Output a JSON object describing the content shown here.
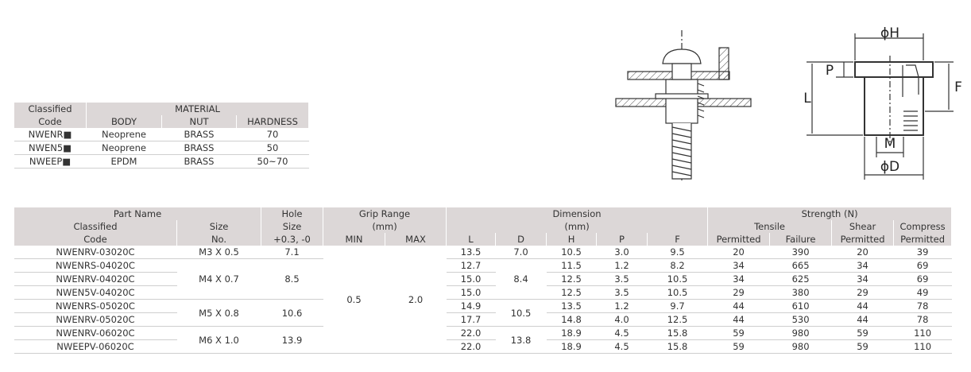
{
  "material_table": {
    "header": {
      "classified": "Classified",
      "code": "Code",
      "material": "MATERIAL",
      "columns": [
        "BODY",
        "NUT",
        "HARDNESS"
      ]
    },
    "rows": [
      [
        "NWENR■",
        "Neoprene",
        "BRASS",
        "70"
      ],
      [
        "NWEN5■",
        "Neoprene",
        "BRASS",
        "50"
      ],
      [
        "NWEEP■",
        "EPDM",
        "BRASS",
        "50~70"
      ]
    ]
  },
  "diagram": {
    "labels": {
      "h": "ϕH",
      "p": "P",
      "f": "F",
      "l": "L",
      "m": "M",
      "d": "ϕD"
    }
  },
  "spec_table": {
    "header": {
      "part_name": "Part Name",
      "classified": "Classified",
      "code": "Code",
      "size_1": "Size",
      "size_2": "No.",
      "hole_1": "Hole",
      "hole_2": "Size",
      "hole_3": "+0.3, -0",
      "grip_range": "Grip Range",
      "grip_unit": "(mm)",
      "min": "MIN",
      "max": "MAX",
      "dimension": "Dimension",
      "dimension_unit": "(mm)",
      "dim_columns": [
        "L",
        "D",
        "H",
        "P",
        "F"
      ],
      "strength": "Strength (N)",
      "tensile": "Tensile",
      "shear": "Shear",
      "compress": "Compress",
      "strength_columns": [
        "Permitted",
        "Failure",
        "Permitted",
        "Permitted"
      ]
    },
    "grip_min": "0.5",
    "grip_max": "2.0",
    "groups": [
      {
        "size": "M3 X 0.5",
        "hole": "7.1",
        "d": "7.0",
        "rows": [
          {
            "code": "NWENRV-03020C",
            "l": "13.5",
            "h": "10.5",
            "p": "3.0",
            "f": "9.5",
            "tensile_permitted": "20",
            "tensile_failure": "390",
            "shear_permitted": "20",
            "compress_permitted": "39"
          }
        ]
      },
      {
        "size": "M4 X 0.7",
        "hole": "8.5",
        "d": "8.4",
        "rows": [
          {
            "code": "NWENRS-04020C",
            "l": "12.7",
            "h": "11.5",
            "p": "1.2",
            "f": "8.2",
            "tensile_permitted": "34",
            "tensile_failure": "665",
            "shear_permitted": "34",
            "compress_permitted": "69"
          },
          {
            "code": "NWENRV-04020C",
            "l": "15.0",
            "h": "12.5",
            "p": "3.5",
            "f": "10.5",
            "tensile_permitted": "34",
            "tensile_failure": "625",
            "shear_permitted": "34",
            "compress_permitted": "69"
          },
          {
            "code": "NWEN5V-04020C",
            "l": "15.0",
            "h": "12.5",
            "p": "3.5",
            "f": "10.5",
            "tensile_permitted": "29",
            "tensile_failure": "380",
            "shear_permitted": "29",
            "compress_permitted": "49"
          }
        ]
      },
      {
        "size": "M5 X 0.8",
        "hole": "10.6",
        "d": "10.5",
        "rows": [
          {
            "code": "NWENRS-05020C",
            "l": "14.9",
            "h": "13.5",
            "p": "1.2",
            "f": "9.7",
            "tensile_permitted": "44",
            "tensile_failure": "610",
            "shear_permitted": "44",
            "compress_permitted": "78"
          },
          {
            "code": "NWENRV-05020C",
            "l": "17.7",
            "h": "14.8",
            "p": "4.0",
            "f": "12.5",
            "tensile_permitted": "44",
            "tensile_failure": "530",
            "shear_permitted": "44",
            "compress_permitted": "78"
          }
        ]
      },
      {
        "size": "M6 X 1.0",
        "hole": "13.9",
        "d": "13.8",
        "rows": [
          {
            "code": "NWENRV-06020C",
            "l": "22.0",
            "h": "18.9",
            "p": "4.5",
            "f": "15.8",
            "tensile_permitted": "59",
            "tensile_failure": "980",
            "shear_permitted": "59",
            "compress_permitted": "110"
          },
          {
            "code": "NWEEPV-06020C",
            "l": "22.0",
            "h": "18.9",
            "p": "4.5",
            "f": "15.8",
            "tensile_permitted": "59",
            "tensile_failure": "980",
            "shear_permitted": "59",
            "compress_permitted": "110"
          }
        ]
      }
    ]
  }
}
